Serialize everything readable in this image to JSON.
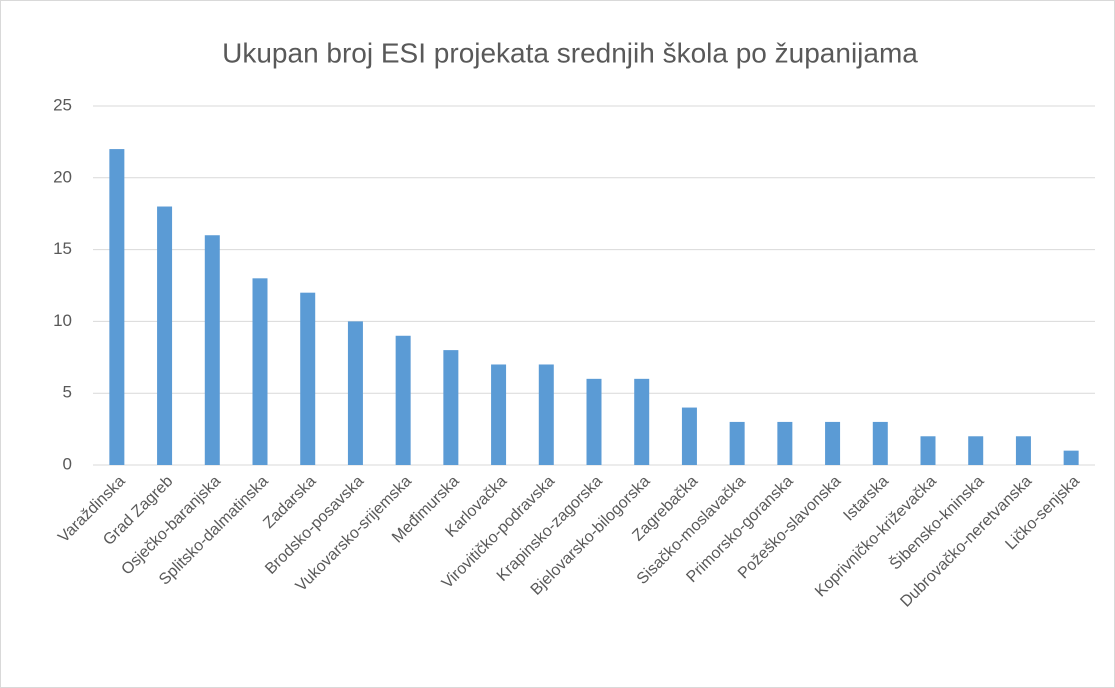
{
  "chart_data": {
    "type": "bar",
    "title": "Ukupan broj ESI projekata srednjih škola po županijama",
    "categories": [
      "Varaždinska",
      "Grad Zagreb",
      "Osječko-baranjska",
      "Splitsko-dalmatinska",
      "Zadarska",
      "Brodsko-posavska",
      "Vukovarsko-srijemska",
      "Međimurska",
      "Karlovačka",
      "Virovitičko-podravska",
      "Krapinsko-zagorska",
      "Bjelovarsko-bilogorska",
      "Zagrebačka",
      "Sisačko-moslavačka",
      "Primorsko-goranska",
      "Požeško-slavonska",
      "Istarska",
      "Koprivničko-križevačka",
      "Šibensko-kninska",
      "Dubrovačko-neretvanska",
      "Ličko-senjska"
    ],
    "values": [
      22,
      18,
      16,
      13,
      12,
      10,
      9,
      8,
      7,
      7,
      6,
      6,
      4,
      3,
      3,
      3,
      3,
      2,
      2,
      2,
      1
    ],
    "color": "#5b9bd5",
    "ylim": [
      0,
      25
    ],
    "yticks": [
      0,
      5,
      10,
      15,
      20,
      25
    ],
    "grid": true
  }
}
